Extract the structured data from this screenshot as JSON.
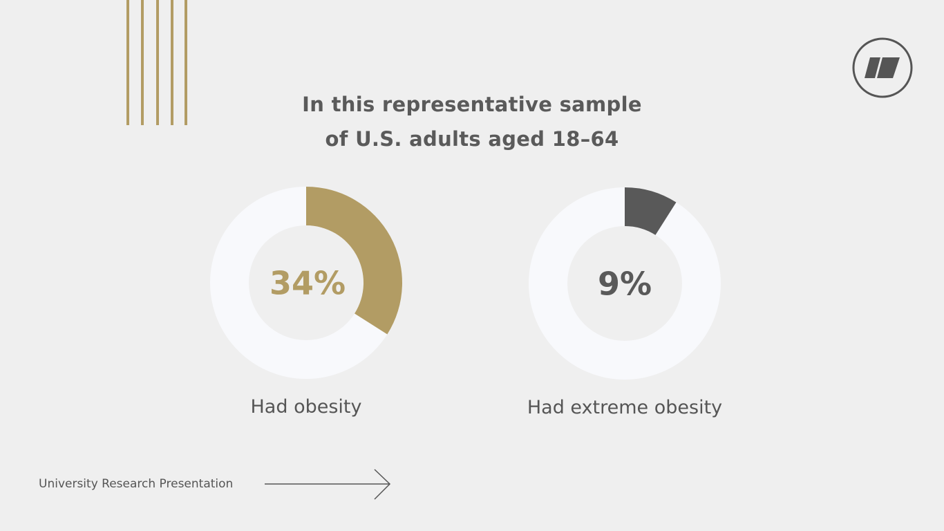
{
  "slide": {
    "title_line1": "In this representative sample",
    "title_line2": "of U.S. adults aged 18–64",
    "footer": "University Research Presentation",
    "logo_icon": "brand-logo-icon",
    "arrow_icon": "right-arrow-icon"
  },
  "colors": {
    "background": "#efefef",
    "accent_gold": "#b29c64",
    "accent_dark": "#595959",
    "ring_track": "#f8f9fc",
    "text": "#555555"
  },
  "chart_data": [
    {
      "type": "pie",
      "variant": "donut",
      "label": "Had obesity",
      "value": 34,
      "value_text": "34%",
      "remainder": 66,
      "color": "#b29c64"
    },
    {
      "type": "pie",
      "variant": "donut",
      "label": "Had extreme obesity",
      "value": 9,
      "value_text": "9%",
      "remainder": 91,
      "color": "#595959"
    }
  ]
}
